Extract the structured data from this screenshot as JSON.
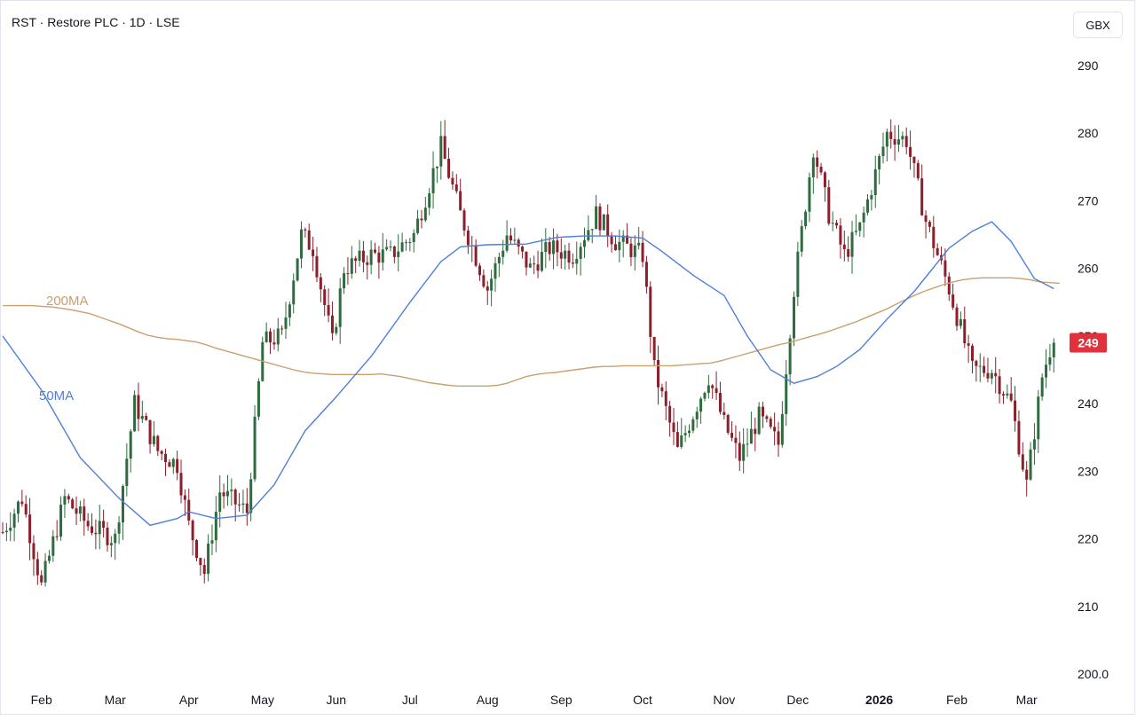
{
  "header": {
    "title": "RST · Restore PLC · 1D · LSE",
    "currency": "GBX"
  },
  "colors": {
    "up": "#2e6b3e",
    "down": "#8b1f2b",
    "ma50": "#4f7fd9",
    "ma200": "#c9a06e",
    "price_tag": "#e0323d"
  },
  "chart_data": {
    "type": "candlestick",
    "symbol": "RST",
    "interval": "1D",
    "exchange": "LSE",
    "last_price": 249,
    "last_price_label": "249",
    "y_ticks": [
      200,
      210,
      220,
      230,
      240,
      250,
      260,
      270,
      280,
      290
    ],
    "y_tick_labels": [
      "200.0",
      "210",
      "220",
      "230",
      "240",
      "250",
      "260",
      "270",
      "280",
      "290"
    ],
    "ylim": [
      200,
      290
    ],
    "x_tick_labels": [
      "Feb",
      "Mar",
      "Apr",
      "May",
      "Jun",
      "Jul",
      "Aug",
      "Sep",
      "Oct",
      "Nov",
      "Dec",
      "2026",
      "Feb",
      "Mar"
    ],
    "x_tick_index": [
      10,
      29,
      48,
      67,
      86,
      105,
      125,
      144,
      165,
      186,
      205,
      226,
      246,
      264
    ],
    "x_tick_bold": [
      false,
      false,
      false,
      false,
      false,
      false,
      false,
      false,
      false,
      false,
      false,
      true,
      false,
      false
    ],
    "series": [
      {
        "name": "200MA",
        "values": [
          254.5,
          254.5,
          254.5,
          254.5,
          254.4,
          254.3,
          254.1,
          253.9,
          253.6,
          253.3,
          252.8,
          252.3,
          251.8,
          251.2,
          250.6,
          250.1,
          249.8,
          249.6,
          249.5,
          249.3,
          249.1,
          248.7,
          248.2,
          247.8,
          247.4,
          247.0,
          246.6,
          246.2,
          245.8,
          245.4,
          245.0,
          244.7,
          244.5,
          244.4,
          244.3,
          244.3,
          244.3,
          244.3,
          244.3,
          244.4,
          244.2,
          244.0,
          243.7,
          243.4,
          243.1,
          242.9,
          242.7,
          242.6,
          242.6,
          242.6,
          242.6,
          242.7,
          243.0,
          243.5,
          244.0,
          244.3,
          244.5,
          244.6,
          244.8,
          245.0,
          245.2,
          245.4,
          245.5,
          245.5,
          245.6,
          245.6,
          245.6,
          245.6,
          245.6,
          245.6,
          245.7,
          245.8,
          245.9,
          246.0,
          246.3,
          246.7,
          247.1,
          247.5,
          247.9,
          248.3,
          248.7,
          249.0,
          249.4,
          249.8,
          250.2,
          250.6,
          251.1,
          251.6,
          252.1,
          252.7,
          253.3,
          253.9,
          254.6,
          255.3,
          256.0,
          256.6,
          257.1,
          257.6,
          258.0,
          258.3,
          258.5,
          258.6,
          258.6,
          258.6,
          258.6,
          258.5,
          258.3,
          258.0,
          257.9,
          257.8
        ]
      },
      {
        "name": "50MA",
        "values": [
          250.0
        ]
      }
    ]
  }
}
